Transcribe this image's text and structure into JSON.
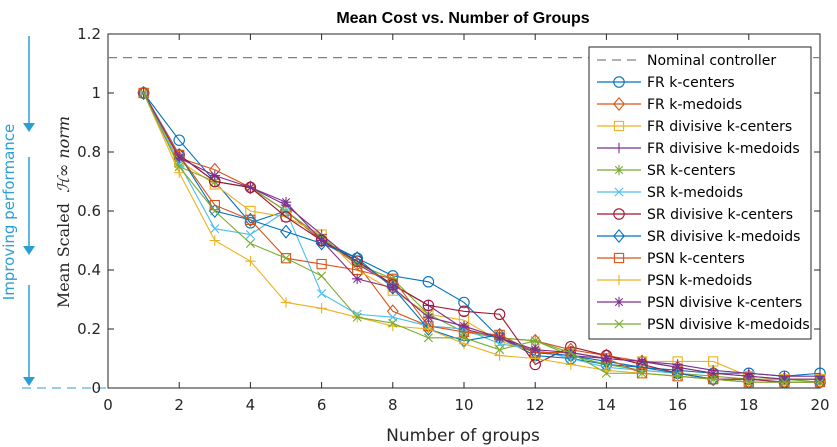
{
  "chart_data": {
    "type": "line",
    "title": "Mean Cost vs. Number of Groups",
    "xlabel": "Number of groups",
    "ylabel": "Mean Scaled",
    "ylabel_math": "ℋ∞ norm",
    "side_annotation": "Improving performance",
    "annotation_color": "#2b9fd4",
    "xlim": [
      0,
      20
    ],
    "ylim": [
      0,
      1.2
    ],
    "xticks": [
      0,
      2,
      4,
      6,
      8,
      10,
      12,
      14,
      16,
      18,
      20
    ],
    "yticks": [
      0,
      0.2,
      0.4,
      0.6,
      0.8,
      1,
      1.2
    ],
    "xtick_labels": [
      "0",
      "2",
      "4",
      "6",
      "8",
      "10",
      "12",
      "14",
      "16",
      "18",
      "20"
    ],
    "ytick_labels": [
      "0",
      "0.2",
      "0.4",
      "0.6",
      "0.8",
      "1",
      "1.2"
    ],
    "nominal": {
      "name": "Nominal controller",
      "value": 1.12,
      "color": "#808080"
    },
    "x": [
      1,
      2,
      3,
      4,
      5,
      6,
      7,
      8,
      9,
      10,
      11,
      12,
      13,
      14,
      15,
      16,
      17,
      18,
      19,
      20
    ],
    "series": [
      {
        "name": "FR k-centers",
        "color": "#0072BD",
        "marker": "circle",
        "values": [
          1,
          0.84,
          0.7,
          0.56,
          0.6,
          0.5,
          0.44,
          0.38,
          0.36,
          0.29,
          0.17,
          0.11,
          0.1,
          0.08,
          0.07,
          0.06,
          0.05,
          0.05,
          0.04,
          0.05
        ]
      },
      {
        "name": "FR k-medoids",
        "color": "#D95319",
        "marker": "diamond",
        "values": [
          1,
          0.78,
          0.74,
          0.68,
          0.6,
          0.5,
          0.42,
          0.26,
          0.21,
          0.2,
          0.17,
          0.16,
          0.13,
          0.11,
          0.09,
          0.07,
          0.05,
          0.04,
          0.03,
          0.03
        ]
      },
      {
        "name": "FR divisive k-centers",
        "color": "#EDB120",
        "marker": "square",
        "values": [
          1,
          0.77,
          0.69,
          0.6,
          0.58,
          0.52,
          0.4,
          0.33,
          0.25,
          0.23,
          0.16,
          0.12,
          0.12,
          0.1,
          0.09,
          0.09,
          0.09,
          0.04,
          0.03,
          0.03
        ]
      },
      {
        "name": "FR divisive k-medoids",
        "color": "#7E2F8E",
        "marker": "plus",
        "values": [
          1,
          0.79,
          0.7,
          0.68,
          0.62,
          0.52,
          0.42,
          0.35,
          0.28,
          0.2,
          0.17,
          0.12,
          0.11,
          0.1,
          0.09,
          0.08,
          0.06,
          0.05,
          0.04,
          0.04
        ]
      },
      {
        "name": "SR k-centers",
        "color": "#77AC30",
        "marker": "asterisk",
        "values": [
          1,
          0.75,
          0.7,
          0.68,
          0.6,
          0.51,
          0.42,
          0.37,
          0.25,
          0.19,
          0.17,
          0.16,
          0.11,
          0.08,
          0.06,
          0.05,
          0.04,
          0.03,
          0.03,
          0.02
        ]
      },
      {
        "name": "SR k-medoids",
        "color": "#4DBEEE",
        "marker": "x",
        "values": [
          1,
          0.76,
          0.54,
          0.52,
          0.6,
          0.32,
          0.25,
          0.24,
          0.21,
          0.2,
          0.15,
          0.13,
          0.1,
          0.07,
          0.06,
          0.05,
          0.03,
          0.03,
          0.02,
          0.02
        ]
      },
      {
        "name": "SR divisive k-centers",
        "color": "#A2142F",
        "marker": "circle",
        "values": [
          1,
          0.79,
          0.7,
          0.68,
          0.58,
          0.5,
          0.43,
          0.35,
          0.28,
          0.26,
          0.25,
          0.08,
          0.14,
          0.11,
          0.08,
          0.05,
          0.03,
          0.03,
          0.02,
          0.02
        ]
      },
      {
        "name": "SR divisive k-medoids",
        "color": "#0072BD",
        "marker": "diamond",
        "values": [
          1,
          0.79,
          0.6,
          0.57,
          0.53,
          0.49,
          0.44,
          0.34,
          0.2,
          0.16,
          0.18,
          0.12,
          0.11,
          0.09,
          0.07,
          0.05,
          0.03,
          0.02,
          0.02,
          0.02
        ]
      },
      {
        "name": "PSN k-centers",
        "color": "#D95319",
        "marker": "square",
        "values": [
          1,
          0.79,
          0.62,
          0.57,
          0.44,
          0.42,
          0.4,
          0.37,
          0.21,
          0.19,
          0.18,
          0.12,
          0.12,
          0.1,
          0.05,
          0.04,
          0.03,
          0.02,
          0.02,
          0.02
        ]
      },
      {
        "name": "PSN k-medoids",
        "color": "#EDB120",
        "marker": "plus",
        "values": [
          1,
          0.73,
          0.5,
          0.43,
          0.29,
          0.27,
          0.24,
          0.21,
          0.2,
          0.15,
          0.11,
          0.1,
          0.08,
          0.06,
          0.05,
          0.04,
          0.03,
          0.02,
          0.02,
          0.02
        ]
      },
      {
        "name": "PSN divisive k-centers",
        "color": "#7E2F8E",
        "marker": "asterisk",
        "values": [
          1,
          0.78,
          0.72,
          0.68,
          0.63,
          0.5,
          0.37,
          0.34,
          0.24,
          0.21,
          0.17,
          0.13,
          0.12,
          0.1,
          0.09,
          0.07,
          0.05,
          0.04,
          0.03,
          0.03
        ]
      },
      {
        "name": "PSN divisive k-medoids",
        "color": "#77AC30",
        "marker": "x",
        "values": [
          1,
          0.75,
          0.6,
          0.49,
          0.44,
          0.38,
          0.24,
          0.22,
          0.17,
          0.17,
          0.13,
          0.16,
          0.12,
          0.05,
          0.05,
          0.04,
          0.03,
          0.02,
          0.02,
          0.02
        ]
      }
    ]
  }
}
